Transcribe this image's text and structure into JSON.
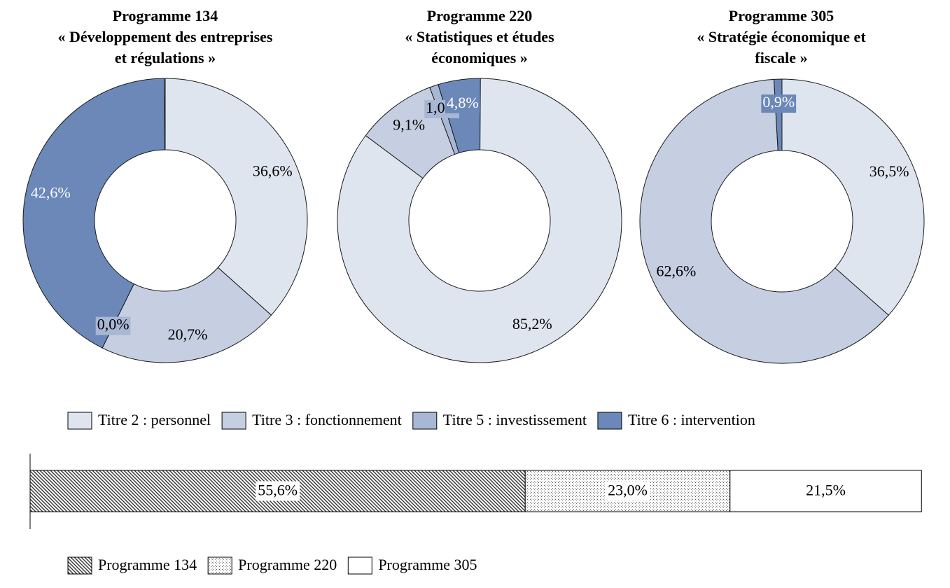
{
  "chart_data": [
    {
      "type": "donut",
      "categories": [
        "Titre 2 : personnel",
        "Titre 3 : fonctionnement",
        "Titre 5 : investissement",
        "Titre 6 : intervention"
      ],
      "colors": [
        "#dfe5ef",
        "#c5cfe1",
        "#a7b7d4",
        "#6b88b8"
      ],
      "legend": "bottom",
      "series": [
        {
          "name": "Programme 134",
          "subtitle": "« Développement des entreprises et régulations »",
          "values": [
            36.6,
            20.7,
            0.0,
            42.6
          ],
          "value_labels": [
            "36,6%",
            "20,7%",
            "0,0%",
            "42,6%"
          ]
        },
        {
          "name": "Programme 220",
          "subtitle": "« Statistiques et études économiques »",
          "values": [
            85.2,
            9.1,
            1.0,
            4.8
          ],
          "value_labels": [
            "85,2%",
            "9,1%",
            "1,0%",
            "4,8%"
          ]
        },
        {
          "name": "Programme 305",
          "subtitle": "« Stratégie économique et fiscale »",
          "values": [
            36.5,
            62.6,
            null,
            0.9
          ],
          "value_labels": [
            "36,5%",
            "62,6%",
            null,
            "0,9%"
          ]
        }
      ]
    },
    {
      "type": "bar",
      "orientation": "horizontal",
      "stacked": true,
      "xlim": [
        0,
        100
      ],
      "legend": "bottom",
      "series": [
        {
          "name": "Programme 134",
          "values": [
            55.6
          ],
          "value_labels": [
            "55,6%"
          ],
          "pattern": "diagonal"
        },
        {
          "name": "Programme 220",
          "values": [
            23.0
          ],
          "value_labels": [
            "23,0%"
          ],
          "pattern": "dots"
        },
        {
          "name": "Programme 305",
          "values": [
            21.5
          ],
          "value_labels": [
            "21,5%"
          ],
          "pattern": "none"
        }
      ]
    }
  ]
}
